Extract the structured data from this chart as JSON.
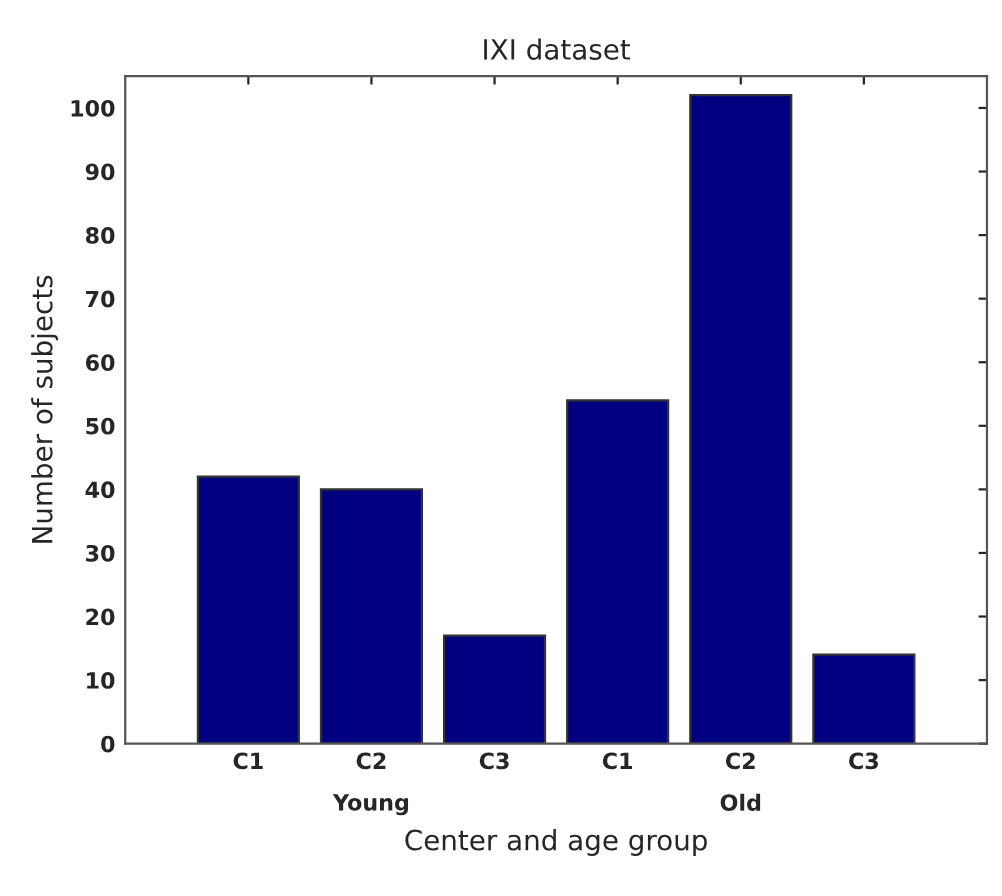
{
  "chart_data": {
    "type": "bar",
    "title": "IXI dataset",
    "xlabel": "Center and age group",
    "ylabel": "Number of subjects",
    "categories": [
      "C1",
      "C2",
      "C3",
      "C1",
      "C2",
      "C3"
    ],
    "values": [
      42,
      40,
      17,
      54,
      102,
      14
    ],
    "color": "#000080",
    "ylim": [
      0,
      105
    ],
    "yticks": [
      0,
      10,
      20,
      30,
      40,
      50,
      60,
      70,
      80,
      90,
      100
    ],
    "grid": false,
    "legend": false,
    "annotations": [
      "Young",
      "Old"
    ]
  }
}
